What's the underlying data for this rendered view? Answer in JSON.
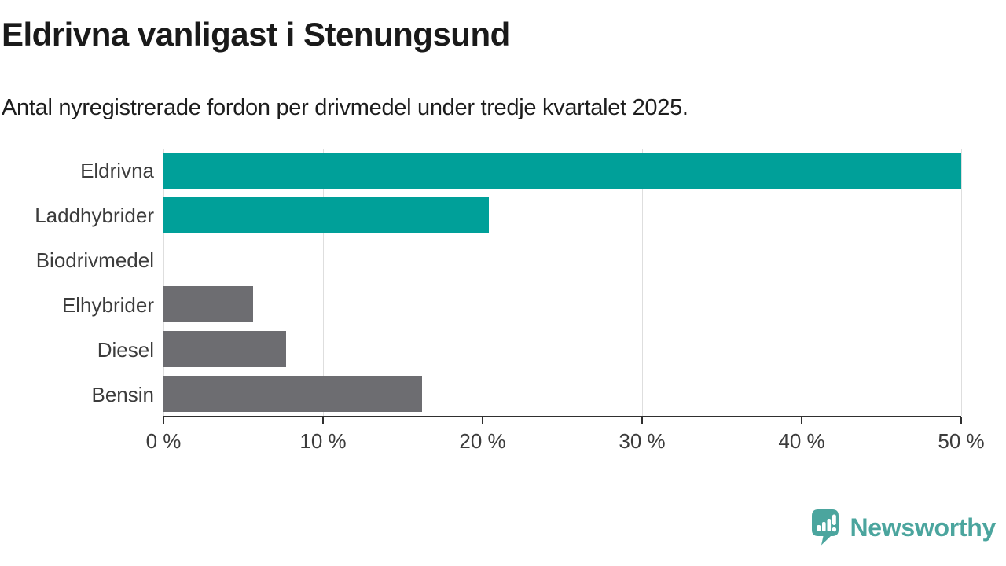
{
  "title": "Eldrivna vanligast i Stenungsund",
  "subtitle": "Antal nyregistrerade fordon per drivmedel under tredje kvartalet 2025.",
  "colors": {
    "teal_bar": "#00a099",
    "gray_bar": "#6d6d71",
    "gridline": "#dedede",
    "axis": "#2f2f2f",
    "label_text": "#3c3c3c",
    "title_text": "#1a1a1a",
    "logo_teal": "#4ba59e"
  },
  "chart_data": {
    "type": "bar",
    "orientation": "horizontal",
    "title": "Eldrivna vanligast i Stenungsund",
    "subtitle": "Antal nyregistrerade fordon per drivmedel under tredje kvartalet 2025.",
    "categories": [
      "Eldrivna",
      "Laddhybrider",
      "Biodrivmedel",
      "Elhybrider",
      "Diesel",
      "Bensin"
    ],
    "values": [
      50.0,
      20.4,
      0,
      5.6,
      7.7,
      16.2
    ],
    "unit": "%",
    "xlim": [
      0,
      50
    ],
    "x_ticks": [
      0,
      10,
      20,
      30,
      40,
      50
    ],
    "x_tick_labels": [
      "0 %",
      "10 %",
      "20 %",
      "30 %",
      "40 %",
      "50 %"
    ],
    "bar_colors": [
      "#00a099",
      "#00a099",
      "#6d6d71",
      "#6d6d71",
      "#6d6d71",
      "#6d6d71"
    ],
    "grid": true,
    "legend": false,
    "xlabel": "",
    "ylabel": ""
  },
  "footer": {
    "brand": "Newsworthy",
    "logo_icon": "newsworthy-speech-bubble-chart-icon"
  }
}
